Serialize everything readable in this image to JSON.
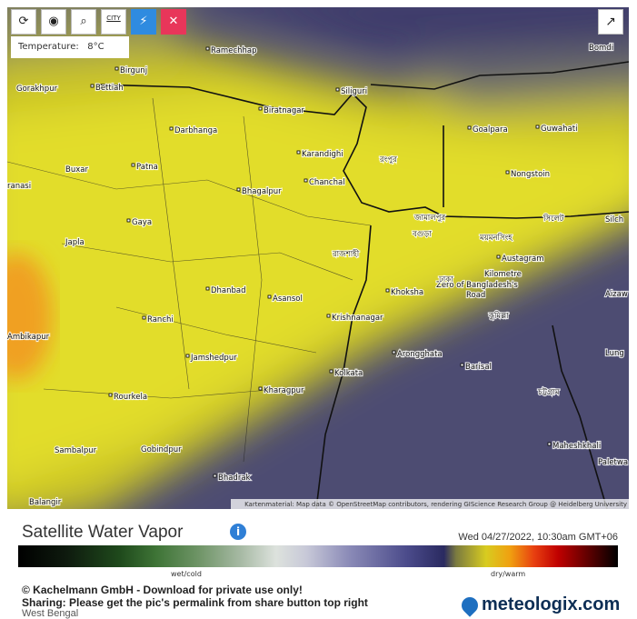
{
  "toolbar": {
    "city_button": "CITY",
    "tooltip": "Temperature:   8°C"
  },
  "map": {
    "places": [
      "Ramechhap",
      "Birgunj",
      "Gorakhpur",
      "Bettiah",
      "Siliguri",
      "Biratnagar",
      "Darbhanga",
      "Goalpara",
      "Guwahati",
      "Karandighi",
      "Buxar",
      "Patna",
      "Chanchal",
      "Nongstoin",
      "Bhagalpur",
      "Gaya",
      "Japla",
      "Austagram",
      "Dhanbad",
      "Asansol",
      "Khoksha",
      "Kilometre",
      "Zero of Bangladesh's",
      "Road",
      "Ranchi",
      "Krishnanagar",
      "Ambikapur",
      "Jamshedpur",
      "Arongghata",
      "Barisal",
      "Kolkata",
      "Kharagpur",
      "Rourkela",
      "Sambalpur",
      "Gobindpur",
      "Maheshkhali",
      "Paletwa",
      "Bhadrak",
      "Balangir",
      "Bomdi",
      "Silch",
      "Aizaw",
      "Lung",
      "ranasi",
      "রংপুর",
      "ময়মনসিংহ",
      "সিলেট",
      "বগুড়া",
      "রাজশাহী",
      "ঢাকা",
      "কুমিল্লা",
      "চট্টগ্রাম",
      "জামালপুর"
    ],
    "attribution": "Kartenmaterial: Map data © OpenStreetMap contributors, rendering GIScience Research Group @ Heidelberg University"
  },
  "legend": {
    "title": "Satellite Water Vapor",
    "timestamp": "Wed 04/27/2022, 10:30am GMT+06",
    "scale_left": "wet/cold",
    "scale_right": "dry/warm"
  },
  "footer": {
    "copyright": "© Kachelmann GmbH - Download for private use only!",
    "sharing": "Sharing: Please get the pic's permalink from share button top right",
    "region": "West Bengal",
    "brand": "meteologix.com"
  }
}
